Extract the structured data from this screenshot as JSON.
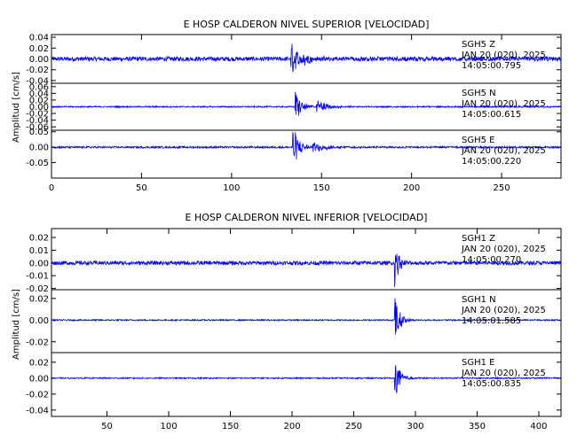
{
  "chart_data": [
    {
      "type": "line",
      "title": "E HOSP CALDERON NIVEL SUPERIOR [VELOCIDAD]",
      "ylabel": "Amplitud [cm/s]",
      "xlabel": "",
      "xlim": [
        0,
        283
      ],
      "xticks": [
        "0",
        "50",
        "100",
        "150",
        "200",
        "250"
      ],
      "xtick_values": [
        0,
        50,
        100,
        150,
        200,
        250
      ],
      "line_color": "#0000ff",
      "series": [
        {
          "name": "SGH5   Z",
          "date": "JAN 20 (020), 2025",
          "time": "14:05:00.795",
          "ylim": [
            -0.045,
            0.045
          ],
          "yticks": [
            "0.04",
            "0.02",
            "0.00",
            "-0.02",
            "-0.04"
          ],
          "ytick_values": [
            0.04,
            0.02,
            0.0,
            -0.02,
            -0.04
          ],
          "noise": 0.004,
          "events": [
            {
              "t": 133,
              "amp": 0.034,
              "dur": 12
            },
            {
              "t": 139,
              "amp": 0.012,
              "dur": 12
            }
          ]
        },
        {
          "name": "SGH5   N",
          "date": "JAN 20 (020), 2025",
          "time": "14:05:00.615",
          "ylim": [
            -0.07,
            0.07
          ],
          "yticks": [
            "0.06",
            "0.04",
            "0.02",
            "0.00",
            "-0.02",
            "-0.04",
            "-0.06"
          ],
          "ytick_values": [
            0.06,
            0.04,
            0.02,
            0.0,
            -0.02,
            -0.04,
            -0.06
          ],
          "noise": 0.002,
          "events": [
            {
              "t": 135,
              "amp": 0.055,
              "dur": 10
            },
            {
              "t": 147,
              "amp": 0.02,
              "dur": 18
            }
          ]
        },
        {
          "name": "SGH5   E",
          "date": "JAN 20 (020), 2025",
          "time": "14:05:00.220",
          "ylim": [
            -0.1,
            0.055
          ],
          "yticks": [
            "0.05",
            "0.00",
            "-0.05"
          ],
          "ytick_values": [
            0.05,
            0.0,
            -0.05
          ],
          "noise": 0.003,
          "events": [
            {
              "t": 134,
              "amp": 0.075,
              "dur": 10
            },
            {
              "t": 145,
              "amp": 0.02,
              "dur": 20
            }
          ]
        }
      ]
    },
    {
      "type": "line",
      "title": "E HOSP CALDERON NIVEL INFERIOR [VELOCIDAD]",
      "ylabel": "Amplitud [cm/s]",
      "xlabel": "",
      "xlim": [
        5,
        418
      ],
      "xticks": [
        "50",
        "100",
        "150",
        "200",
        "250",
        "300",
        "350",
        "400"
      ],
      "xtick_values": [
        50,
        100,
        150,
        200,
        250,
        300,
        350,
        400
      ],
      "line_color": "#0000ff",
      "series": [
        {
          "name": "SGH1   Z",
          "date": "JAN 20 (020), 2025",
          "time": "14:05:00.270",
          "ylim": [
            -0.021,
            0.027
          ],
          "yticks": [
            "0.02",
            "0.01",
            "0.00",
            "-0.01",
            "-0.02"
          ],
          "ytick_values": [
            0.02,
            0.01,
            0.0,
            -0.01,
            -0.02
          ],
          "noise": 0.0015,
          "events": [
            {
              "t": 283,
              "amp": 0.02,
              "dur": 10
            }
          ]
        },
        {
          "name": "SGH1   N",
          "date": "JAN 20 (020), 2025",
          "time": "14:05:01.585",
          "ylim": [
            -0.03,
            0.028
          ],
          "yticks": [
            "0.02",
            "0.00",
            "-0.02"
          ],
          "ytick_values": [
            0.02,
            0.0,
            -0.02
          ],
          "noise": 0.0006,
          "events": [
            {
              "t": 283,
              "amp": 0.025,
              "dur": 12
            }
          ]
        },
        {
          "name": "SGH1   E",
          "date": "JAN 20 (020), 2025",
          "time": "14:05:00.835",
          "ylim": [
            -0.048,
            0.032
          ],
          "yticks": [
            "0.02",
            "0.00",
            "-0.02",
            "-0.04"
          ],
          "ytick_values": [
            0.02,
            0.0,
            -0.02,
            -0.04
          ],
          "noise": 0.0008,
          "events": [
            {
              "t": 283,
              "amp": 0.03,
              "dur": 12
            }
          ]
        }
      ]
    }
  ]
}
